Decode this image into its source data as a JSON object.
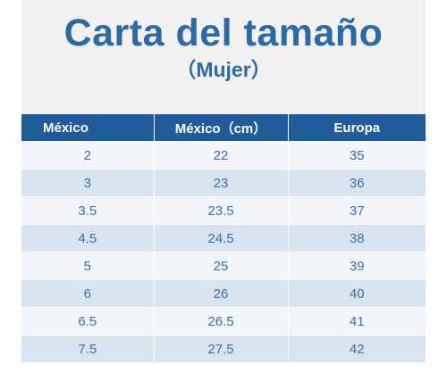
{
  "header": {
    "title": "Carta del tamaño",
    "subtitle": "（Mujer）"
  },
  "table": {
    "columns": [
      "México",
      "México（cm）",
      "Europa"
    ],
    "rows": [
      [
        "2",
        "22",
        "35"
      ],
      [
        "3",
        "23",
        "36"
      ],
      [
        "3.5",
        "23.5",
        "37"
      ],
      [
        "4.5",
        "24.5",
        "38"
      ],
      [
        "5",
        "25",
        "39"
      ],
      [
        "6",
        "26",
        "40"
      ],
      [
        "6.5",
        "26.5",
        "41"
      ],
      [
        "7.5",
        "27.5",
        "42"
      ]
    ]
  },
  "colors": {
    "title": "#2c6aa6",
    "header_row": "#1f5c9c",
    "row_light": "#f2f6fb",
    "row_dark": "#d9e4f1",
    "cell_text": "#3a6da8"
  }
}
